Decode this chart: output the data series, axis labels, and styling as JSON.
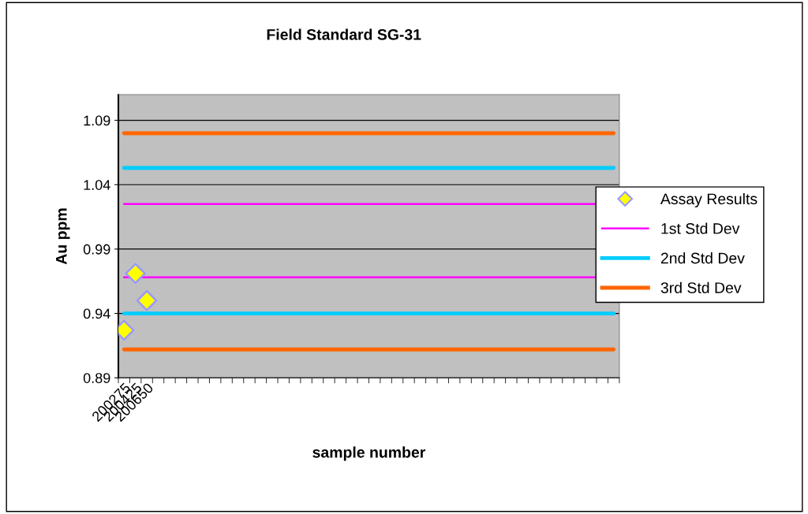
{
  "chart_data": {
    "type": "scatter",
    "title": "Field Standard SG-31",
    "xlabel": "sample number",
    "ylabel": "Au ppm",
    "categories": [
      "200275",
      "200425",
      "200650",
      null,
      null,
      null,
      null,
      null,
      null,
      null,
      null,
      null,
      null,
      null,
      null,
      null,
      null,
      null,
      null,
      null,
      null,
      null,
      null,
      null,
      null,
      null,
      null,
      null,
      null,
      null,
      null,
      null,
      null,
      null,
      null,
      null,
      null,
      null,
      null,
      null,
      null,
      null,
      null,
      null
    ],
    "series": [
      {
        "name": "Assay Results",
        "color": "#ffff00",
        "values": [
          0.927,
          0.971,
          0.95,
          null,
          null,
          null,
          null,
          null,
          null,
          null,
          null,
          null,
          null,
          null,
          null,
          null,
          null,
          null,
          null,
          null,
          null,
          null,
          null,
          null,
          null,
          null,
          null,
          null,
          null,
          null,
          null,
          null,
          null,
          null,
          null,
          null,
          null,
          null,
          null,
          null,
          null,
          null,
          null,
          null
        ]
      }
    ],
    "marker": "diamond",
    "ref_lines": [
      {
        "axis": "y",
        "value": 1.025,
        "label": "1st Std Dev",
        "color": "#ff00ff"
      },
      {
        "axis": "y",
        "value": 0.968,
        "color": "#ff00ff"
      },
      {
        "axis": "y",
        "value": 1.053,
        "label": "2nd Std Dev",
        "color": "#00ccff"
      },
      {
        "axis": "y",
        "value": 0.94,
        "color": "#00ccff"
      },
      {
        "axis": "y",
        "value": 1.08,
        "label": "3rd Std Dev",
        "color": "#ff6600"
      },
      {
        "axis": "y",
        "value": 0.912,
        "color": "#ff6600"
      }
    ],
    "ylim": [
      0.89,
      1.11
    ],
    "yticks": [
      0.89,
      0.94,
      0.99,
      1.04,
      1.09
    ],
    "grid": "y",
    "legend": "right"
  }
}
